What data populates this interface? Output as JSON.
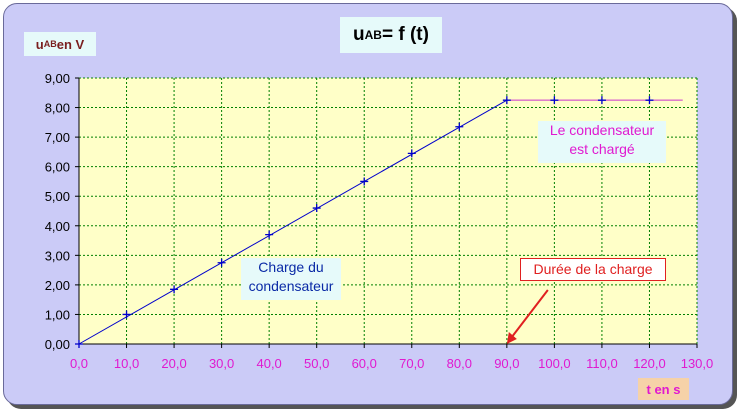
{
  "title": {
    "main": "u",
    "sub": "AB",
    "rest": " = f (t)"
  },
  "ylabel": {
    "main": "u",
    "sub": "AB",
    "rest": " en V"
  },
  "xlabel": "t en s",
  "annotations": {
    "charged": [
      "Le condensateur",
      "est chargé"
    ],
    "charge": [
      "Charge du",
      "condensateur"
    ],
    "duree": "Durée de la charge"
  },
  "colors": {
    "plot_bg": "#ffffc8",
    "grid": "#008000",
    "line": "#0000cc",
    "plateau": "#cc33cc",
    "tick_text": "#e01ad0",
    "arrow": "#e02020"
  },
  "chart_data": {
    "type": "line",
    "title": "uAB = f (t)",
    "xlabel": "t en s",
    "ylabel": "uAB en V",
    "xlim": [
      0,
      130
    ],
    "ylim": [
      0,
      9
    ],
    "x_ticks": [
      0,
      10,
      20,
      30,
      40,
      50,
      60,
      70,
      80,
      90,
      100,
      110,
      120,
      130
    ],
    "y_ticks": [
      0,
      1,
      2,
      3,
      4,
      5,
      6,
      7,
      8,
      9
    ],
    "x_tick_labels": [
      "0,0",
      "10,0",
      "20,0",
      "30,0",
      "40,0",
      "50,0",
      "60,0",
      "70,0",
      "80,0",
      "90,0",
      "100,0",
      "110,0",
      "120,0",
      "130,0"
    ],
    "y_tick_labels": [
      "0,00",
      "1,00",
      "2,00",
      "3,00",
      "4,00",
      "5,00",
      "6,00",
      "7,00",
      "8,00",
      "9,00"
    ],
    "grid": true,
    "series": [
      {
        "style": "line-with-plus-markers",
        "x": [
          0,
          10,
          20,
          30,
          40,
          50,
          60,
          70,
          80,
          90,
          100,
          110,
          120
        ],
        "y": [
          0,
          1.0,
          1.85,
          2.75,
          3.7,
          4.6,
          5.5,
          6.45,
          7.35,
          8.25,
          8.25,
          8.25,
          8.25
        ]
      }
    ],
    "fit_line": {
      "x": [
        0,
        90
      ],
      "y": [
        0,
        8.25
      ]
    },
    "plateau_line": {
      "x": [
        90,
        127
      ],
      "y": [
        8.25,
        8.25
      ]
    },
    "arrow_target": {
      "x": 90,
      "y": 0
    }
  }
}
